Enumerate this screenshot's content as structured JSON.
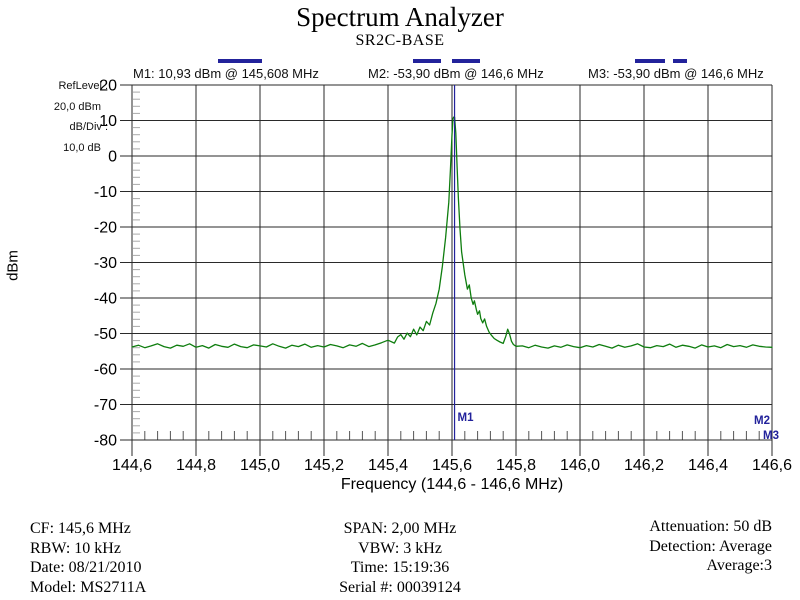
{
  "title": "Spectrum Analyzer",
  "subtitle": "SR2C-BASE",
  "markers": {
    "m1": "M1: 10,93 dBm @ 145,608 MHz",
    "m2": "M2: -53,90 dBm @ 146,6 MHz",
    "m3": "M3: -53,90 dBm @ 146,6 MHz"
  },
  "left_panel": {
    "ref_level_label": "RefLevel :",
    "ref_level_value": "20,0  dBm",
    "db_div_label": "dB/Div :",
    "db_div_value": "10,0 dB"
  },
  "y_axis_label": "dBm",
  "x_axis_label": "Frequency (144,6 - 146,6 MHz)",
  "footer": {
    "left": [
      "CF: 145,6 MHz",
      "RBW: 10 kHz",
      "Date: 08/21/2010",
      "Model: MS2711A"
    ],
    "center": [
      "SPAN: 2,00 MHz",
      "VBW: 3 kHz",
      "Time: 15:19:36",
      "Serial #: 00039124"
    ],
    "right": [
      "Attenuation: 50 dB",
      "Detection: Average",
      "Average:3"
    ]
  },
  "colors": {
    "trace": "#0e7d0e",
    "marker": "#22229b",
    "grid": "#2a2a2a",
    "minor_tick_x": "#555555",
    "minor_tick_y": "#aaaaaa"
  },
  "chart_data": {
    "type": "line",
    "title": "Spectrum Analyzer",
    "subtitle": "SR2C-BASE",
    "xlabel": "Frequency (144,6 - 146,6 MHz)",
    "ylabel": "dBm",
    "xlim": [
      144.6,
      146.6
    ],
    "ylim": [
      -80,
      20
    ],
    "grid": true,
    "x_ticks": [
      "144,6",
      "144,8",
      "145,0",
      "145,2",
      "145,4",
      "145,6",
      "145,8",
      "146,0",
      "146,2",
      "146,4",
      "146,6"
    ],
    "x_tick_values": [
      144.6,
      144.8,
      145.0,
      145.2,
      145.4,
      145.6,
      145.8,
      146.0,
      146.2,
      146.4,
      146.6
    ],
    "y_ticks": [
      "20",
      "10",
      "0",
      "-10",
      "-20",
      "-30",
      "-40",
      "-50",
      "-60",
      "-70",
      "-80"
    ],
    "y_tick_values": [
      20,
      10,
      0,
      -10,
      -20,
      -30,
      -40,
      -50,
      -60,
      -70,
      -80
    ],
    "markers": [
      {
        "id": "M1",
        "freq": 145.608,
        "dbm": 10.93
      },
      {
        "id": "M2",
        "freq": 146.6,
        "dbm": -53.9
      },
      {
        "id": "M3",
        "freq": 146.6,
        "dbm": -53.9
      }
    ],
    "trace": [
      [
        144.6,
        -53.8
      ],
      [
        144.62,
        -53.3
      ],
      [
        144.64,
        -54.0
      ],
      [
        144.66,
        -53.5
      ],
      [
        144.68,
        -52.9
      ],
      [
        144.7,
        -53.7
      ],
      [
        144.72,
        -54.1
      ],
      [
        144.74,
        -53.3
      ],
      [
        144.76,
        -53.6
      ],
      [
        144.78,
        -52.9
      ],
      [
        144.8,
        -53.9
      ],
      [
        144.82,
        -53.4
      ],
      [
        144.84,
        -54.1
      ],
      [
        144.86,
        -53.1
      ],
      [
        144.88,
        -53.6
      ],
      [
        144.9,
        -53.9
      ],
      [
        144.92,
        -53.0
      ],
      [
        144.94,
        -53.7
      ],
      [
        144.96,
        -54.0
      ],
      [
        144.98,
        -53.2
      ],
      [
        145.0,
        -53.5
      ],
      [
        145.02,
        -53.8
      ],
      [
        145.04,
        -52.9
      ],
      [
        145.06,
        -53.6
      ],
      [
        145.08,
        -54.1
      ],
      [
        145.1,
        -53.3
      ],
      [
        145.12,
        -53.7
      ],
      [
        145.14,
        -53.0
      ],
      [
        145.16,
        -53.9
      ],
      [
        145.18,
        -53.4
      ],
      [
        145.2,
        -53.8
      ],
      [
        145.22,
        -53.1
      ],
      [
        145.24,
        -53.5
      ],
      [
        145.26,
        -54.0
      ],
      [
        145.28,
        -53.2
      ],
      [
        145.3,
        -53.6
      ],
      [
        145.32,
        -52.8
      ],
      [
        145.34,
        -53.7
      ],
      [
        145.36,
        -53.2
      ],
      [
        145.38,
        -52.6
      ],
      [
        145.4,
        -51.9
      ],
      [
        145.42,
        -52.7
      ],
      [
        145.43,
        -51.0
      ],
      [
        145.44,
        -50.3
      ],
      [
        145.45,
        -51.6
      ],
      [
        145.46,
        -49.9
      ],
      [
        145.47,
        -50.9
      ],
      [
        145.48,
        -48.8
      ],
      [
        145.49,
        -50.4
      ],
      [
        145.5,
        -48.2
      ],
      [
        145.51,
        -49.2
      ],
      [
        145.52,
        -46.6
      ],
      [
        145.53,
        -47.6
      ],
      [
        145.54,
        -44.2
      ],
      [
        145.55,
        -41.5
      ],
      [
        145.56,
        -37.5
      ],
      [
        145.57,
        -31.0
      ],
      [
        145.58,
        -23.0
      ],
      [
        145.59,
        -13.0
      ],
      [
        145.595,
        -4.0
      ],
      [
        145.6,
        6.0
      ],
      [
        145.603,
        10.5
      ],
      [
        145.605,
        10.93
      ],
      [
        145.608,
        10.9
      ],
      [
        145.612,
        6.5
      ],
      [
        145.616,
        -3.0
      ],
      [
        145.62,
        -12.0
      ],
      [
        145.625,
        -20.5
      ],
      [
        145.63,
        -27.0
      ],
      [
        145.64,
        -33.5
      ],
      [
        145.648,
        -37.5
      ],
      [
        145.654,
        -36.3
      ],
      [
        145.66,
        -40.0
      ],
      [
        145.666,
        -41.8
      ],
      [
        145.67,
        -40.8
      ],
      [
        145.676,
        -43.2
      ],
      [
        145.68,
        -44.6
      ],
      [
        145.686,
        -43.6
      ],
      [
        145.69,
        -45.8
      ],
      [
        145.696,
        -47.0
      ],
      [
        145.702,
        -45.9
      ],
      [
        145.708,
        -48.0
      ],
      [
        145.716,
        -49.6
      ],
      [
        145.724,
        -50.6
      ],
      [
        145.732,
        -51.4
      ],
      [
        145.74,
        -51.9
      ],
      [
        145.75,
        -52.4
      ],
      [
        145.76,
        -52.8
      ],
      [
        145.768,
        -50.8
      ],
      [
        145.774,
        -48.8
      ],
      [
        145.78,
        -50.2
      ],
      [
        145.786,
        -52.2
      ],
      [
        145.792,
        -53.1
      ],
      [
        145.8,
        -53.6
      ],
      [
        145.82,
        -53.5
      ],
      [
        145.84,
        -54.0
      ],
      [
        145.86,
        -53.3
      ],
      [
        145.88,
        -53.8
      ],
      [
        145.9,
        -54.1
      ],
      [
        145.92,
        -53.5
      ],
      [
        145.94,
        -53.9
      ],
      [
        145.96,
        -53.2
      ],
      [
        145.98,
        -53.7
      ],
      [
        146.0,
        -54.0
      ],
      [
        146.02,
        -53.4
      ],
      [
        146.04,
        -53.8
      ],
      [
        146.06,
        -53.1
      ],
      [
        146.08,
        -53.6
      ],
      [
        146.1,
        -54.1
      ],
      [
        146.12,
        -53.3
      ],
      [
        146.14,
        -53.9
      ],
      [
        146.16,
        -53.5
      ],
      [
        146.18,
        -52.9
      ],
      [
        146.2,
        -53.8
      ],
      [
        146.22,
        -54.0
      ],
      [
        146.24,
        -53.4
      ],
      [
        146.26,
        -53.7
      ],
      [
        146.28,
        -53.0
      ],
      [
        146.3,
        -53.9
      ],
      [
        146.32,
        -53.3
      ],
      [
        146.34,
        -53.6
      ],
      [
        146.36,
        -54.1
      ],
      [
        146.38,
        -53.2
      ],
      [
        146.4,
        -53.8
      ],
      [
        146.42,
        -53.5
      ],
      [
        146.44,
        -54.0
      ],
      [
        146.46,
        -53.1
      ],
      [
        146.48,
        -53.7
      ],
      [
        146.5,
        -53.4
      ],
      [
        146.52,
        -53.9
      ],
      [
        146.54,
        -53.2
      ],
      [
        146.56,
        -53.6
      ],
      [
        146.58,
        -53.8
      ],
      [
        146.6,
        -53.9
      ]
    ]
  }
}
